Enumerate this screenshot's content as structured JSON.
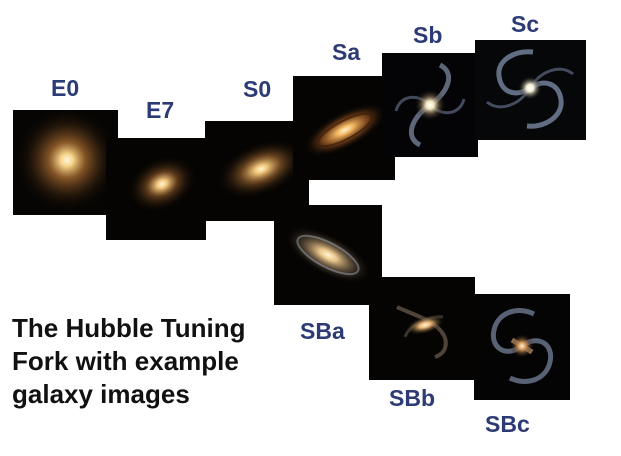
{
  "galaxies": [
    {
      "id": "E0",
      "label": "E0"
    },
    {
      "id": "E7",
      "label": "E7"
    },
    {
      "id": "S0",
      "label": "S0"
    },
    {
      "id": "Sa",
      "label": "Sa"
    },
    {
      "id": "Sb",
      "label": "Sb"
    },
    {
      "id": "Sc",
      "label": "Sc"
    },
    {
      "id": "SBa",
      "label": "SBa"
    },
    {
      "id": "SBb",
      "label": "SBb"
    },
    {
      "id": "SBc",
      "label": "SBc"
    }
  ],
  "caption": {
    "lines": [
      "The Hubble Tuning",
      "Fork with example",
      "galaxy images"
    ]
  },
  "colors": {
    "label": "#2c3a75",
    "caption": "#111111",
    "galaxy_core": "#fff6d8",
    "galaxy_halo": "#d9a35a",
    "spiral_arm": "#a9b9d9"
  }
}
